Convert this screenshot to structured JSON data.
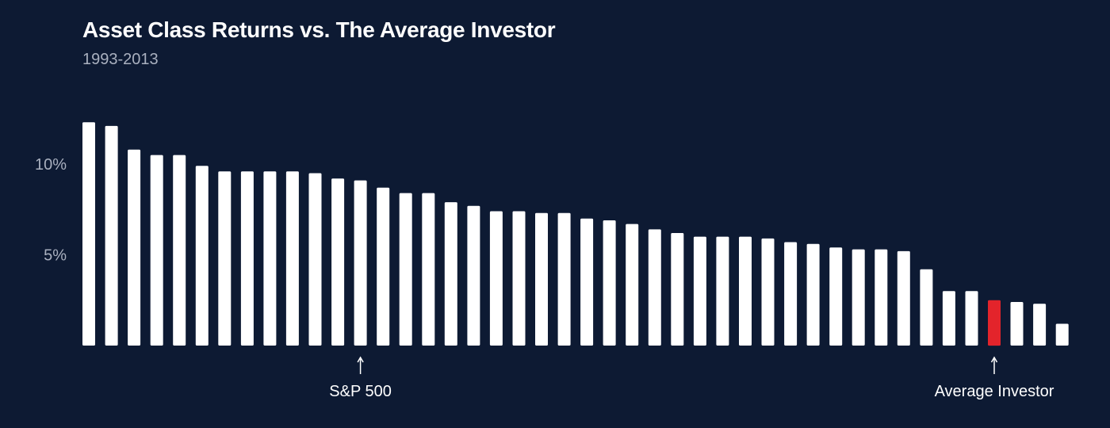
{
  "colors": {
    "background": "#0d1a33",
    "bar": "#ffffff",
    "highlight": "#e3242b",
    "tick_text": "#a9b0bf",
    "annotation_text": "#ffffff"
  },
  "chart_data": {
    "type": "bar",
    "title": "Asset Class Returns vs. The Average Investor",
    "subtitle": "1993-2013",
    "xlabel": "",
    "ylabel": "",
    "ylim": [
      0,
      12.5
    ],
    "yticks": [
      {
        "value": 10,
        "label": "10%"
      },
      {
        "value": 5,
        "label": "5%"
      }
    ],
    "grid": false,
    "values": [
      12.3,
      12.1,
      10.8,
      10.5,
      10.5,
      9.9,
      9.6,
      9.6,
      9.6,
      9.6,
      9.5,
      9.2,
      9.1,
      8.7,
      8.4,
      8.4,
      7.9,
      7.7,
      7.4,
      7.4,
      7.3,
      7.3,
      7.0,
      6.9,
      6.7,
      6.4,
      6.2,
      6.0,
      6.0,
      6.0,
      5.9,
      5.7,
      5.6,
      5.4,
      5.3,
      5.3,
      5.2,
      4.2,
      3.0,
      3.0,
      2.5,
      2.4,
      2.3,
      1.2
    ],
    "highlight_index": 40,
    "annotations": [
      {
        "bar_index": 12,
        "label": "S&P 500"
      },
      {
        "bar_index": 40,
        "label": "Average Investor"
      }
    ]
  }
}
